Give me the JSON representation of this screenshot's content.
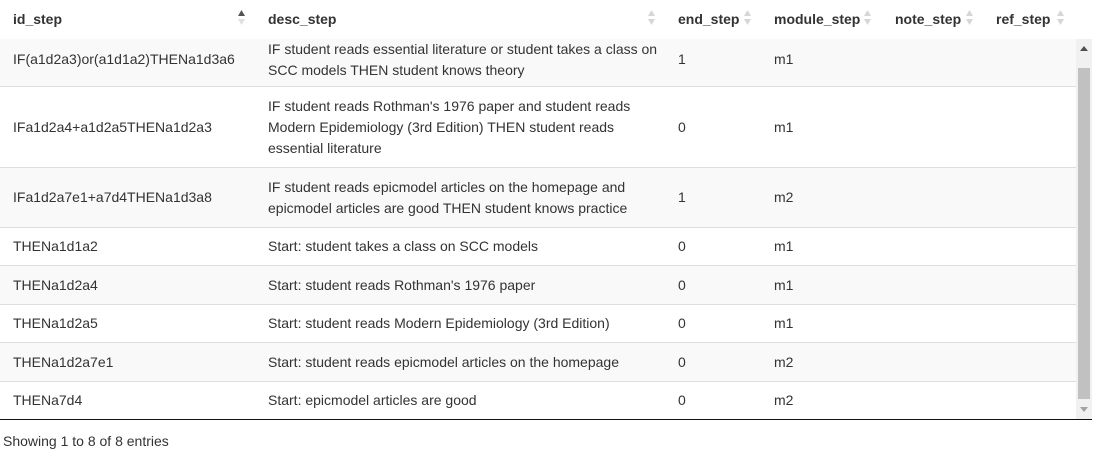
{
  "columns": [
    {
      "key": "id_step",
      "label": "id_step",
      "sort": "asc"
    },
    {
      "key": "desc_step",
      "label": "desc_step",
      "sort": "none"
    },
    {
      "key": "end_step",
      "label": "end_step",
      "sort": "none"
    },
    {
      "key": "module_step",
      "label": "module_step",
      "sort": "none"
    },
    {
      "key": "note_step",
      "label": "note_step",
      "sort": "none"
    },
    {
      "key": "ref_step",
      "label": "ref_step",
      "sort": "none"
    }
  ],
  "rows": [
    {
      "id_step": "IF(a1d2a3)or(a1d1a2)THENa1d3a6",
      "desc_step": "IF student reads essential literature or student takes a class on SCC models THEN student knows theory",
      "end_step": "1",
      "module_step": "m1",
      "note_step": "",
      "ref_step": ""
    },
    {
      "id_step": "IFa1d2a4+a1d2a5THENa1d2a3",
      "desc_step": "IF student reads Rothman's 1976 paper and student reads Modern Epidemiology (3rd Edition) THEN student reads essential literature",
      "end_step": "0",
      "module_step": "m1",
      "note_step": "",
      "ref_step": ""
    },
    {
      "id_step": "IFa1d2a7e1+a7d4THENa1d3a8",
      "desc_step": "IF student reads epicmodel articles on the homepage and epicmodel articles are good THEN student knows practice",
      "end_step": "1",
      "module_step": "m2",
      "note_step": "",
      "ref_step": ""
    },
    {
      "id_step": "THENa1d1a2",
      "desc_step": "Start: student takes a class on SCC models",
      "end_step": "0",
      "module_step": "m1",
      "note_step": "",
      "ref_step": ""
    },
    {
      "id_step": "THENa1d2a4",
      "desc_step": "Start: student reads Rothman's 1976 paper",
      "end_step": "0",
      "module_step": "m1",
      "note_step": "",
      "ref_step": ""
    },
    {
      "id_step": "THENa1d2a5",
      "desc_step": "Start: student reads Modern Epidemiology (3rd Edition)",
      "end_step": "0",
      "module_step": "m1",
      "note_step": "",
      "ref_step": ""
    },
    {
      "id_step": "THENa1d2a7e1",
      "desc_step": "Start: student reads epicmodel articles on the homepage",
      "end_step": "0",
      "module_step": "m2",
      "note_step": "",
      "ref_step": ""
    },
    {
      "id_step": "THENa7d4",
      "desc_step": "Start: epicmodel articles are good",
      "end_step": "0",
      "module_step": "m2",
      "note_step": "",
      "ref_step": ""
    }
  ],
  "info": "Showing 1 to 8 of 8 entries",
  "icons": {
    "sort_asc": "sort-ascending-icon",
    "sort_none": "sort-both-icon",
    "scroll_up": "scroll-up-arrow-icon",
    "scroll_down": "scroll-down-arrow-icon"
  }
}
